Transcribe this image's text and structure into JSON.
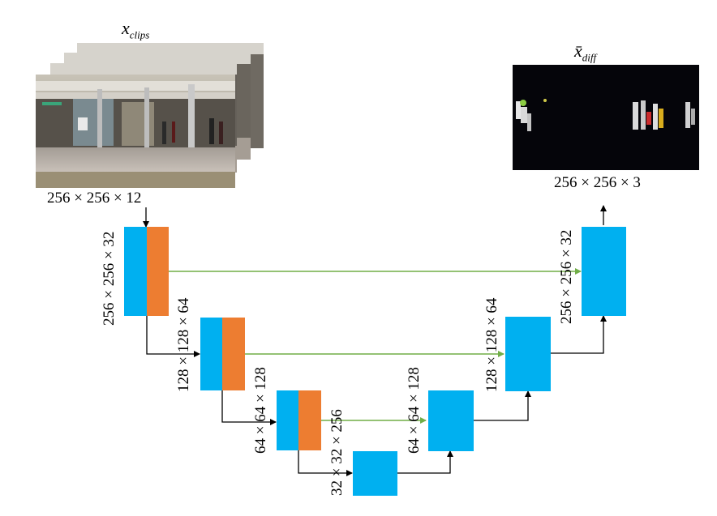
{
  "input": {
    "symbol": "x",
    "subscript": "clips",
    "dims": "256 × 256 × 12"
  },
  "output": {
    "symbol": "x̄",
    "subscript": "diff",
    "dims": "256 × 256 × 3"
  },
  "layers": {
    "enc1": "256 × 256 × 32",
    "enc2": "128 × 128 × 64",
    "enc3": "64 × 64 × 128",
    "bottleneck": "32 × 32 × 256",
    "dec3": "64 × 64 × 128",
    "dec2": "128 × 128 × 64",
    "dec1": "256 × 256 × 32"
  },
  "colors": {
    "conv_block": "#00b0f0",
    "skip_block": "#ed7d31",
    "skip_arrow": "#70ad47",
    "flow_arrow": "#000000"
  }
}
